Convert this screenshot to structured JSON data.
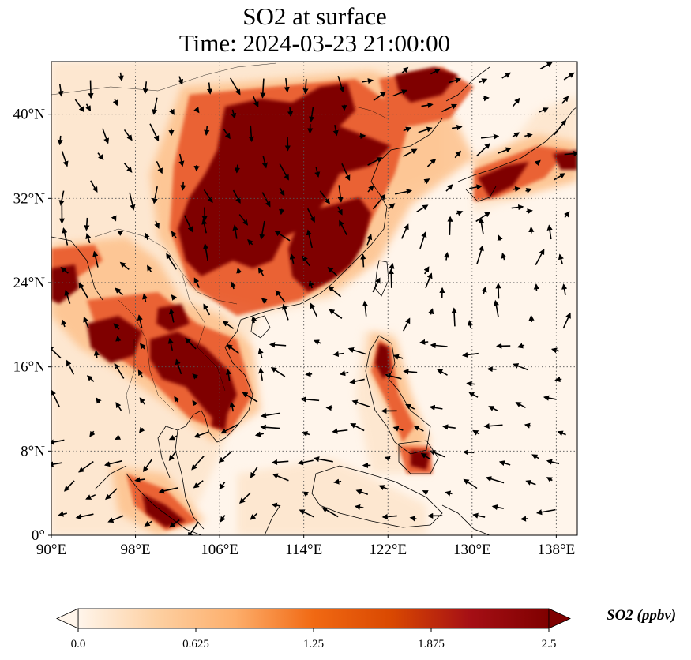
{
  "title": {
    "line1": "SO2 at surface",
    "line2": "Time: 2024-03-23 21:00:00"
  },
  "map": {
    "projection": "PlateCarree",
    "lon_range": [
      90,
      140
    ],
    "lat_range": [
      0,
      45
    ],
    "x_ticks": [
      {
        "value": 90,
        "label": "90°E"
      },
      {
        "value": 98,
        "label": "98°E"
      },
      {
        "value": 106,
        "label": "106°E"
      },
      {
        "value": 114,
        "label": "114°E"
      },
      {
        "value": 122,
        "label": "122°E"
      },
      {
        "value": 130,
        "label": "130°E"
      },
      {
        "value": 138,
        "label": "138°E"
      }
    ],
    "y_ticks": [
      {
        "value": 0,
        "label": "0°"
      },
      {
        "value": 8,
        "label": "8°N"
      },
      {
        "value": 16,
        "label": "16°N"
      },
      {
        "value": 24,
        "label": "24°N"
      },
      {
        "value": 32,
        "label": "32°N"
      },
      {
        "value": 40,
        "label": "40°N"
      }
    ],
    "gridlines": true,
    "background_color": "#fff5eb",
    "coast_color": "#000000"
  },
  "colorbar": {
    "label": "SO2 (ppbv)",
    "min": 0.0,
    "max": 2.5,
    "ticks": [
      {
        "value": 0.0,
        "label": "0.0"
      },
      {
        "value": 0.625,
        "label": "0.625"
      },
      {
        "value": 1.25,
        "label": "1.25"
      },
      {
        "value": 1.875,
        "label": "1.875"
      },
      {
        "value": 2.5,
        "label": "2.5"
      }
    ],
    "colors": [
      "#fff5eb",
      "#fdd0a2",
      "#fdae6b",
      "#f16913",
      "#d94801",
      "#a50f15",
      "#7f0000"
    ],
    "extend": "both"
  }
}
